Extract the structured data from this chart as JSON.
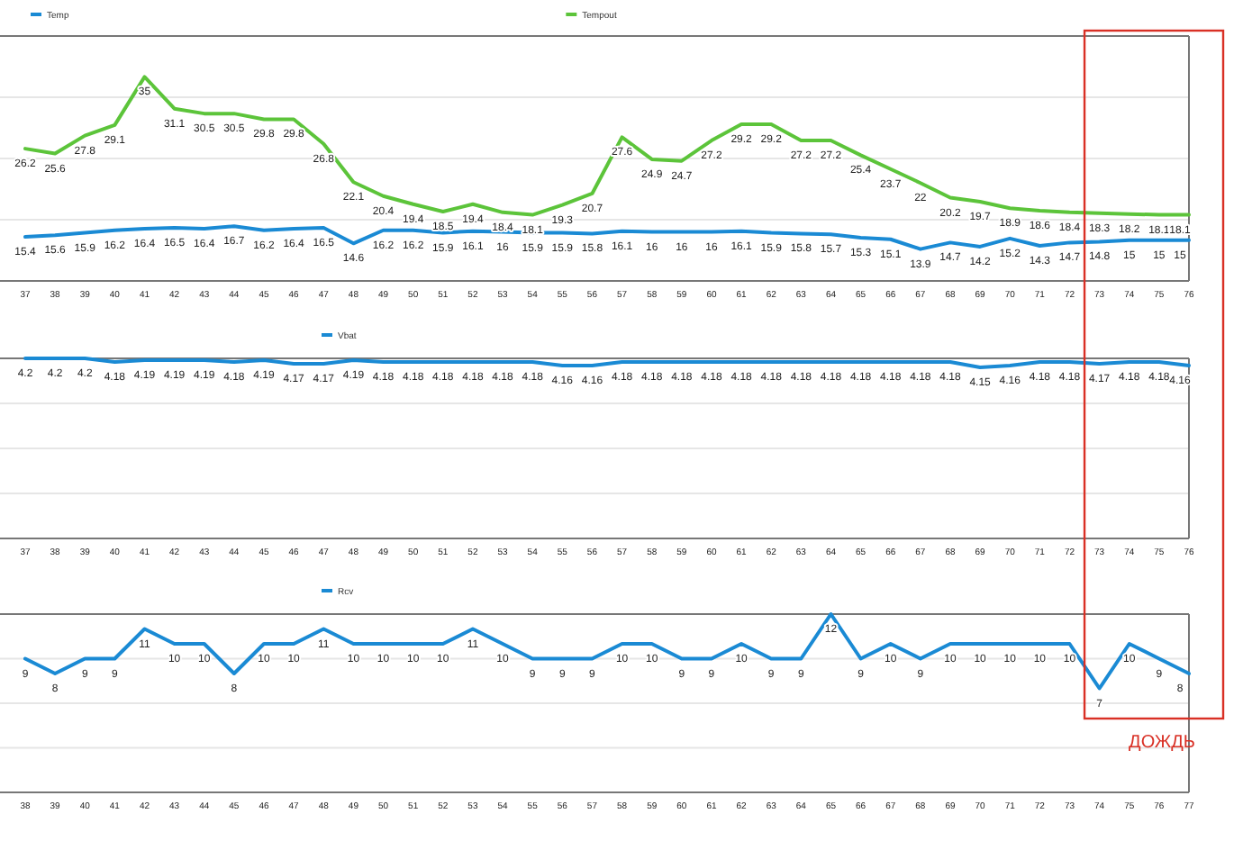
{
  "chart_data": [
    {
      "type": "line",
      "categories": [
        "37",
        "38",
        "39",
        "40",
        "41",
        "42",
        "43",
        "44",
        "45",
        "46",
        "47",
        "48",
        "49",
        "50",
        "51",
        "52",
        "53",
        "54",
        "55",
        "56",
        "57",
        "58",
        "59",
        "60",
        "61",
        "62",
        "63",
        "64",
        "65",
        "66",
        "67",
        "68",
        "69",
        "70",
        "71",
        "72",
        "73",
        "74",
        "75",
        "76"
      ],
      "series": [
        {
          "name": "Temp",
          "color": "#1a8ad4",
          "values": [
            15.4,
            15.6,
            15.9,
            16.2,
            16.4,
            16.5,
            16.4,
            16.7,
            16.2,
            16.4,
            16.5,
            14.6,
            16.2,
            16.2,
            15.9,
            16.1,
            16,
            15.9,
            15.9,
            15.8,
            16.1,
            16,
            16,
            16,
            16.1,
            15.9,
            15.8,
            15.7,
            15.3,
            15.1,
            13.9,
            14.7,
            14.2,
            15.2,
            14.3,
            14.7,
            14.8,
            15,
            15,
            15
          ]
        },
        {
          "name": "Tempout",
          "color": "#5cc43a",
          "values": [
            26.2,
            25.6,
            27.8,
            29.1,
            35,
            31.1,
            30.5,
            30.5,
            29.8,
            29.8,
            26.8,
            22.1,
            20.4,
            19.4,
            18.5,
            19.4,
            18.4,
            18.1,
            19.3,
            20.7,
            27.6,
            24.9,
            24.7,
            27.2,
            29.2,
            29.2,
            27.2,
            27.2,
            25.4,
            23.7,
            22,
            20.2,
            19.7,
            18.9,
            18.6,
            18.4,
            18.3,
            18.2,
            18.1,
            18.1
          ]
        }
      ],
      "ylim": [
        10,
        40
      ],
      "yticks": [
        {
          "value": 10,
          "label": null
        },
        {
          "value": 17.5,
          "label": null
        },
        {
          "value": 25,
          "label": null
        },
        {
          "value": 32.5,
          "label": null
        },
        {
          "value": 40,
          "label": null
        }
      ],
      "tick_labels": "x",
      "grid": "y",
      "legend": "top",
      "marker": "none",
      "data_labels": true
    },
    {
      "type": "line",
      "categories": [
        "37",
        "38",
        "39",
        "40",
        "41",
        "42",
        "43",
        "44",
        "45",
        "46",
        "47",
        "48",
        "49",
        "50",
        "51",
        "52",
        "53",
        "54",
        "55",
        "56",
        "57",
        "58",
        "59",
        "60",
        "61",
        "62",
        "63",
        "64",
        "65",
        "66",
        "67",
        "68",
        "69",
        "70",
        "71",
        "72",
        "73",
        "74",
        "75",
        "76"
      ],
      "series": [
        {
          "name": "Vbat",
          "color": "#1a8ad4",
          "values": [
            4.2,
            4.2,
            4.2,
            4.18,
            4.19,
            4.19,
            4.19,
            4.18,
            4.19,
            4.17,
            4.17,
            4.19,
            4.18,
            4.18,
            4.18,
            4.18,
            4.18,
            4.18,
            4.16,
            4.16,
            4.18,
            4.18,
            4.18,
            4.18,
            4.18,
            4.18,
            4.18,
            4.18,
            4.18,
            4.18,
            4.18,
            4.18,
            4.15,
            4.16,
            4.18,
            4.18,
            4.17,
            4.18,
            4.18,
            4.16
          ]
        }
      ],
      "ylim": [
        3.2,
        4.2
      ],
      "yticks": [
        {
          "value": 3.2,
          "label": null
        },
        {
          "value": 3.45,
          "label": null
        },
        {
          "value": 3.7,
          "label": null
        },
        {
          "value": 3.95,
          "label": null
        },
        {
          "value": 4.2,
          "label": null
        }
      ],
      "tick_labels": "x",
      "grid": "y",
      "legend": "top",
      "marker": "none",
      "data_labels": true
    },
    {
      "type": "line",
      "categories": [
        "38",
        "39",
        "40",
        "41",
        "42",
        "43",
        "44",
        "45",
        "46",
        "47",
        "48",
        "49",
        "50",
        "51",
        "52",
        "53",
        "54",
        "55",
        "56",
        "57",
        "58",
        "59",
        "60",
        "61",
        "62",
        "63",
        "64",
        "65",
        "66",
        "67",
        "68",
        "69",
        "70",
        "71",
        "72",
        "73",
        "74",
        "75",
        "76",
        "77"
      ],
      "series": [
        {
          "name": "Rcv",
          "color": "#1a8ad4",
          "values": [
            9,
            8,
            9,
            9,
            11,
            10,
            10,
            8,
            10,
            10,
            11,
            10,
            10,
            10,
            10,
            11,
            10,
            9,
            9,
            9,
            10,
            10,
            9,
            9,
            10,
            9,
            9,
            12,
            9,
            10,
            9,
            10,
            10,
            10,
            10,
            10,
            7,
            10,
            9,
            8
          ]
        }
      ],
      "ylim": [
        0,
        12
      ],
      "yticks": [
        {
          "value": 0,
          "label": null
        },
        {
          "value": 3,
          "label": null
        },
        {
          "value": 6,
          "label": null
        },
        {
          "value": 9,
          "label": null
        },
        {
          "value": 12,
          "label": null
        }
      ],
      "tick_labels": "x",
      "grid": "y",
      "legend": "top",
      "marker": "none",
      "data_labels": true,
      "annotations": [
        "ДОЖДЬ"
      ]
    }
  ]
}
